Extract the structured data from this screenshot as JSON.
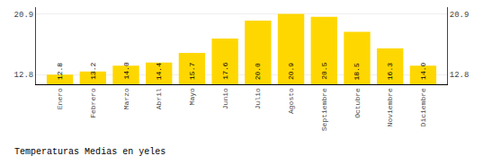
{
  "chart_data": {
    "type": "bar",
    "title": "Temperaturas Medias en yeles",
    "categories": [
      "Enero",
      "Febrero",
      "Marzo",
      "Abril",
      "Mayo",
      "Junio",
      "Julio",
      "Agosto",
      "Septiembre",
      "Octubre",
      "Noviembre",
      "Diciembre"
    ],
    "values": [
      12.8,
      13.2,
      14.0,
      14.4,
      15.7,
      17.6,
      20.0,
      20.9,
      20.5,
      18.5,
      16.3,
      14.0
    ],
    "value_labels": [
      "12.8",
      "13.2",
      "14.0",
      "14.4",
      "15.7",
      "17.6",
      "20.0",
      "20.9",
      "20.5",
      "18.5",
      "16.3",
      "14.0"
    ],
    "data_labels": true,
    "color": "#FFD700",
    "ylim": [
      11.5,
      21.8
    ],
    "yticks": [
      12.8,
      20.9
    ],
    "y2lim": [
      11.5,
      21.8
    ],
    "y2ticks": [
      12.8,
      20.9
    ],
    "grid": true
  }
}
